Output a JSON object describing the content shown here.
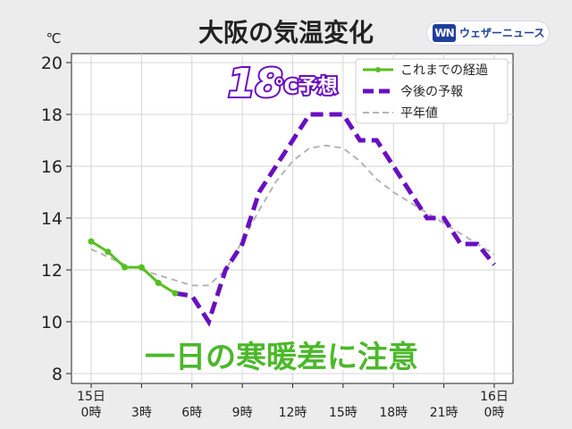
{
  "title": "大阪の気温変化",
  "logo": {
    "mark": "WN",
    "text": "ウェザーニュース"
  },
  "unit_label": "℃",
  "highlight": {
    "value_big": "18",
    "value_unit": "℃予想"
  },
  "caption": "一日の寒暖差に注意",
  "colors": {
    "observed": "#55c020",
    "forecast": "#6a0fc0",
    "normal": "#b4b4b4",
    "caption": "#4cb82a"
  },
  "chart_data": {
    "type": "line",
    "title": "大阪の気温変化",
    "ylabel": "℃",
    "ylim": [
      8,
      20
    ],
    "yticks": [
      8,
      10,
      12,
      14,
      16,
      18,
      20
    ],
    "xlim": [
      0,
      24
    ],
    "grid": true,
    "legend_position": "top-right",
    "xticks": [
      {
        "x": 0,
        "label": [
          "15日",
          "0時"
        ]
      },
      {
        "x": 3,
        "label": [
          "3時"
        ]
      },
      {
        "x": 6,
        "label": [
          "6時"
        ]
      },
      {
        "x": 9,
        "label": [
          "9時"
        ]
      },
      {
        "x": 12,
        "label": [
          "12時"
        ]
      },
      {
        "x": 15,
        "label": [
          "15時"
        ]
      },
      {
        "x": 18,
        "label": [
          "18時"
        ]
      },
      {
        "x": 21,
        "label": [
          "21時"
        ]
      },
      {
        "x": 24,
        "label": [
          "16日",
          "0時"
        ]
      }
    ],
    "series": [
      {
        "name": "これまでの経過",
        "style": "observed",
        "x": [
          0,
          1,
          2,
          3,
          4,
          5
        ],
        "y": [
          13.1,
          12.7,
          12.1,
          12.1,
          11.5,
          11.1
        ]
      },
      {
        "name": "今後の予報",
        "style": "forecast",
        "x": [
          5,
          6,
          7,
          8,
          9,
          10,
          11,
          12,
          13,
          14,
          15,
          16,
          17,
          18,
          19,
          20,
          21,
          22,
          23,
          24
        ],
        "y": [
          11.1,
          11.0,
          10.0,
          12.0,
          13.0,
          15.0,
          16.0,
          17.0,
          18.0,
          18.0,
          18.0,
          17.0,
          17.0,
          16.0,
          15.0,
          14.0,
          14.0,
          13.0,
          13.0,
          12.2
        ]
      },
      {
        "name": "平年値",
        "style": "normal",
        "x": [
          0,
          1,
          2,
          3,
          4,
          5,
          6,
          7,
          8,
          9,
          10,
          11,
          12,
          13,
          14,
          15,
          16,
          17,
          18,
          19,
          20,
          21,
          22,
          23,
          24
        ],
        "y": [
          12.8,
          12.5,
          12.2,
          12.0,
          11.8,
          11.6,
          11.4,
          11.4,
          12.0,
          13.1,
          14.3,
          15.4,
          16.2,
          16.7,
          16.8,
          16.7,
          16.2,
          15.5,
          15.0,
          14.6,
          14.2,
          13.8,
          13.4,
          13.0,
          12.6
        ]
      }
    ]
  }
}
